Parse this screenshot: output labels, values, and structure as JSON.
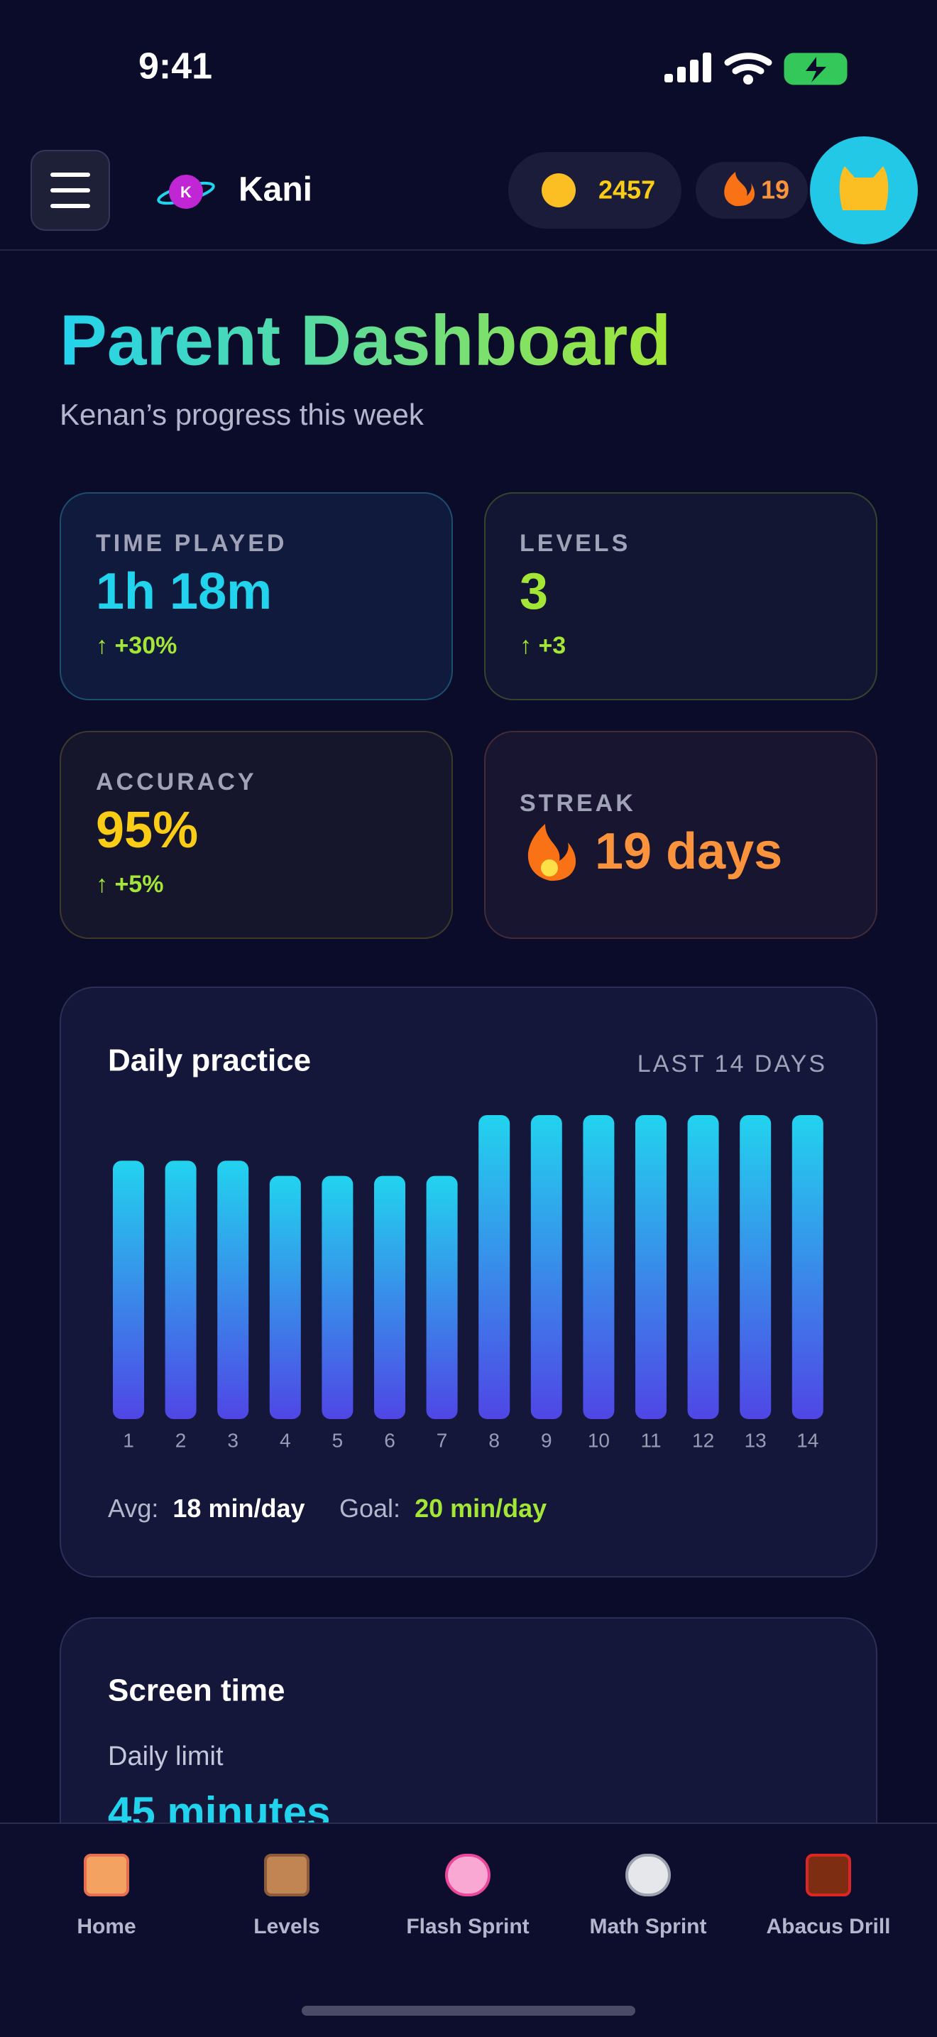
{
  "status_bar": {
    "time": "9:41"
  },
  "header": {
    "app_name": "Kani",
    "logo_letter": "K",
    "coins": "2457",
    "streak": "19"
  },
  "page": {
    "title": "Parent Dashboard",
    "subtitle": "Kenan’s progress this week"
  },
  "stats": [
    {
      "label": "TIME PLAYED",
      "value": "1h 18m",
      "change": "↑ +30%"
    },
    {
      "label": "LEVELS",
      "value": "3",
      "change": "↑ +3"
    },
    {
      "label": "ACCURACY",
      "value": "95%",
      "change": "↑ +5%"
    },
    {
      "label": "STREAK",
      "value": "19 days"
    }
  ],
  "chart_data": {
    "type": "bar",
    "title": "Daily practice",
    "subtitle": "LAST 14 DAYS",
    "categories": [
      "1",
      "2",
      "3",
      "4",
      "5",
      "6",
      "7",
      "8",
      "9",
      "10",
      "11",
      "12",
      "13",
      "14"
    ],
    "values": [
      17,
      17,
      17,
      16,
      16,
      16,
      16,
      20,
      20,
      20,
      20,
      20,
      20,
      20
    ],
    "footer": {
      "avg_label": "Avg:",
      "avg_value": "18 min/day",
      "goal_label": "Goal:",
      "goal_value": "20 min/day"
    }
  },
  "screen_time": {
    "title": "Screen time",
    "limit_label": "Daily limit",
    "limit_value": "45 minutes"
  },
  "nav": [
    {
      "label": "Home"
    },
    {
      "label": "Levels"
    },
    {
      "label": "Flash Sprint"
    },
    {
      "label": "Math Sprint"
    },
    {
      "label": "Abacus Drill"
    }
  ]
}
